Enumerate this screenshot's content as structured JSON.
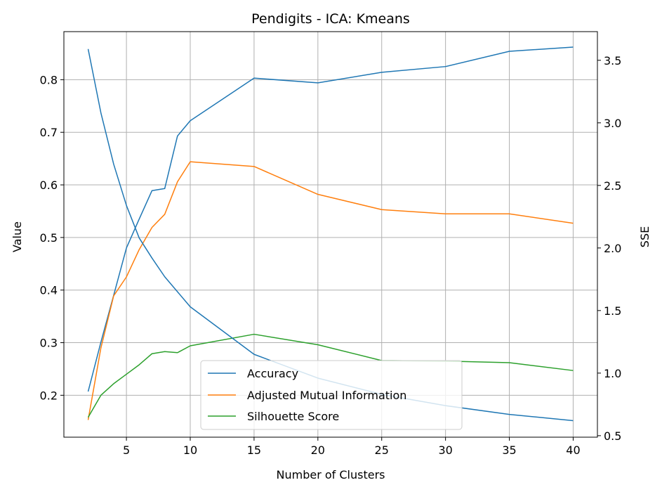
{
  "chart_data": {
    "type": "line",
    "title": "Pendigits - ICA: Kmeans",
    "xlabel": "Number of Clusters",
    "ylabel": "Value",
    "ylabel_right": "SSE",
    "x": [
      2,
      3,
      4,
      5,
      6,
      7,
      8,
      9,
      10,
      15,
      20,
      25,
      30,
      35,
      40
    ],
    "xticks": [
      5,
      10,
      15,
      20,
      25,
      30,
      35,
      40
    ],
    "xlim": [
      0.1,
      41.9
    ],
    "ylim": [
      0.1203,
      0.8914
    ],
    "yticks": [
      0.2,
      0.3,
      0.4,
      0.5,
      0.6,
      0.7,
      0.8
    ],
    "ylim_right": [
      0.488,
      3.729
    ],
    "yticks_right": [
      0.5,
      1.0,
      1.5,
      2.0,
      2.5,
      3.0,
      3.5
    ],
    "grid": true,
    "legend_position": "lower center",
    "series": [
      {
        "name": "Accuracy",
        "color": "#1f77b4",
        "axis": "left",
        "values": [
          0.207,
          0.301,
          0.39,
          0.48,
          0.535,
          0.589,
          0.593,
          0.693,
          0.722,
          0.803,
          0.794,
          0.814,
          0.825,
          0.854,
          0.862
        ]
      },
      {
        "name": "Adjusted Mutual Information",
        "color": "#ff7f0e",
        "axis": "left",
        "values": [
          0.153,
          0.29,
          0.389,
          0.425,
          0.477,
          0.519,
          0.544,
          0.606,
          0.644,
          0.635,
          0.582,
          0.553,
          0.545,
          0.545,
          0.527
        ]
      },
      {
        "name": "Silhouette Score",
        "color": "#2ca02c",
        "axis": "left",
        "values": [
          0.158,
          0.2,
          0.222,
          0.24,
          0.258,
          0.279,
          0.283,
          0.281,
          0.294,
          0.316,
          0.296,
          0.266,
          0.265,
          0.262,
          0.247
        ]
      },
      {
        "name": "",
        "color": "#1f77b4",
        "axis": "right",
        "values": [
          3.59,
          3.08,
          2.67,
          2.34,
          2.08,
          1.92,
          1.77,
          1.65,
          1.53,
          1.15,
          0.96,
          0.83,
          0.74,
          0.67,
          0.62
        ]
      }
    ]
  }
}
